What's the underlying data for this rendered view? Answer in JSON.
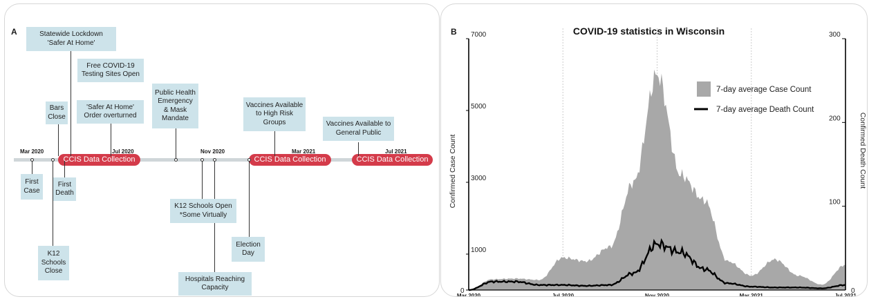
{
  "panel_a": {
    "letter": "A",
    "months": [
      "Mar 2020",
      "Jul 2020",
      "Nov 2020",
      "Mar 2021",
      "Jul  2021"
    ],
    "pill_label": "CCIS Data Collection",
    "events_above": [
      {
        "text": "Statewide Lockdown\n'Safer At Home'"
      },
      {
        "text": "Free COVID-19\nTesting Sites Open"
      },
      {
        "text": "'Safer At Home'\nOrder overturned"
      },
      {
        "text": "Bars\nClose"
      },
      {
        "text": "Public Health\nEmergency\n& Mask\nMandate"
      },
      {
        "text": "Vaccines Available\nto High Risk\nGroups"
      },
      {
        "text": "Vaccines Available to\nGeneral Public"
      }
    ],
    "events_below": [
      {
        "text": "First\nCase"
      },
      {
        "text": "First\nDeath"
      },
      {
        "text": "K12\nSchools\nClose"
      },
      {
        "text": "K12 Schools Open\n*Some Virtually"
      },
      {
        "text": "Hospitals Reaching\nCapacity"
      },
      {
        "text": "Election\nDay"
      }
    ]
  },
  "panel_b": {
    "letter": "B"
  },
  "chart_data": {
    "type": "area",
    "title": "COVID-19 statistics in Wisconsin",
    "ylabel": "Confirmed Case Count",
    "y2label": "Confirmed Death Count",
    "ylim": [
      0,
      7000
    ],
    "y2lim": [
      0,
      300
    ],
    "yticks": [
      0,
      1000,
      3000,
      5000,
      7000
    ],
    "y2ticks": [
      0,
      100,
      200,
      300
    ],
    "xticks": [
      "Mar 2020",
      "Jul 2020",
      "Nov 2020",
      "Mar 2021",
      "Jul  2021"
    ],
    "vertical_guides": [
      "Jul 2020",
      "Nov 2020",
      "Mar 2021"
    ],
    "legend_position": "upper-right",
    "colors": {
      "cases": "#a8a8a8",
      "deaths": "#000000",
      "ccis": "#d43b4a",
      "event_box": "#cde3ea"
    },
    "x": [
      "2020-03",
      "2020-04",
      "2020-05",
      "2020-06",
      "2020-07",
      "2020-08",
      "2020-09",
      "2020-10",
      "2020-11",
      "2020-12",
      "2021-01",
      "2021-02",
      "2021-03",
      "2021-04",
      "2021-05",
      "2021-06",
      "2021-07"
    ],
    "series": [
      {
        "name": "7-day average Case Count",
        "kind": "area",
        "axis": "left",
        "values": [
          5,
          300,
          320,
          280,
          900,
          800,
          1200,
          3000,
          6000,
          3200,
          2500,
          800,
          400,
          850,
          400,
          150,
          700
        ]
      },
      {
        "name": "7-day average Death Count",
        "kind": "line",
        "axis": "right",
        "values": [
          0,
          10,
          10,
          6,
          6,
          5,
          6,
          20,
          55,
          45,
          25,
          8,
          4,
          3,
          3,
          2,
          6
        ]
      }
    ]
  }
}
